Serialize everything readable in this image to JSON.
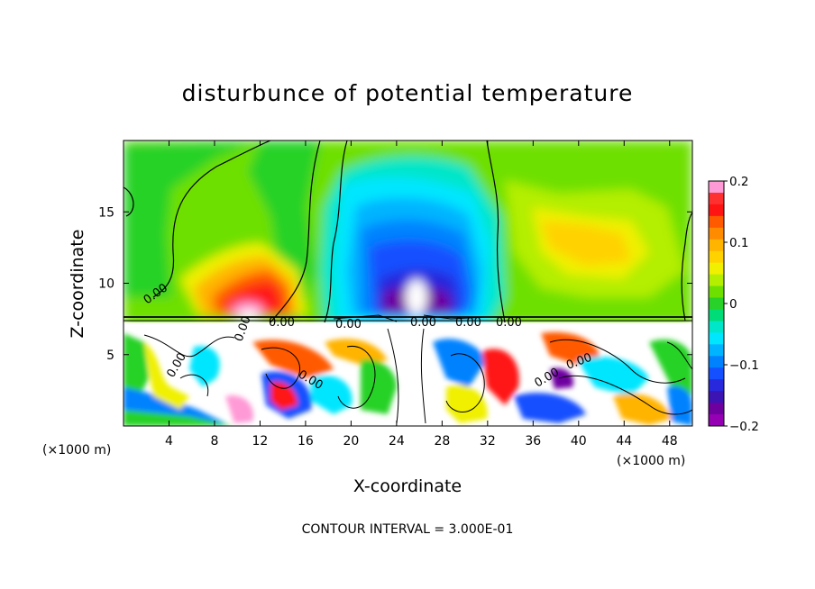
{
  "chart_data": {
    "type": "heatmap",
    "title": "disturbunce of potential temperature",
    "xlabel": "X-coordinate",
    "ylabel": "Z-coordinate",
    "x_unit_left": "(×1000 m)",
    "x_unit_right": "(×1000 m)",
    "xlim": [
      0,
      50
    ],
    "ylim": [
      0,
      20
    ],
    "x_ticks": [
      4,
      8,
      12,
      16,
      20,
      24,
      28,
      32,
      36,
      40,
      44,
      48
    ],
    "y_ticks": [
      5,
      10,
      15
    ],
    "colorbar": {
      "range": [
        -0.2,
        0.2
      ],
      "ticks": [
        {
          "value": 0.2,
          "label": "0.2"
        },
        {
          "value": 0.1,
          "label": "0.1"
        },
        {
          "value": 0.0,
          "label": "0"
        },
        {
          "value": -0.1,
          "label": "−0.1"
        },
        {
          "value": -0.2,
          "label": "−0.2"
        }
      ],
      "colors": [
        "#ff9ad6",
        "#ff3030",
        "#ff1414",
        "#ff5a00",
        "#ff8c00",
        "#ffb400",
        "#ffd200",
        "#f0f000",
        "#b4ee00",
        "#6ee000",
        "#28d228",
        "#00dc78",
        "#00e6c8",
        "#00e6ff",
        "#00b4ff",
        "#0082ff",
        "#1450ff",
        "#2828dc",
        "#3c14b4",
        "#6e00a0",
        "#9600b4"
      ]
    },
    "contour_labels": [
      "0.00",
      "0.00",
      "0.00",
      "0.00",
      "0.00",
      "0.00",
      "0.00",
      "0.00",
      "0.00",
      "0.00",
      "0.00"
    ],
    "contour_interval": "CONTOUR INTERVAL = 3.000E-01"
  }
}
